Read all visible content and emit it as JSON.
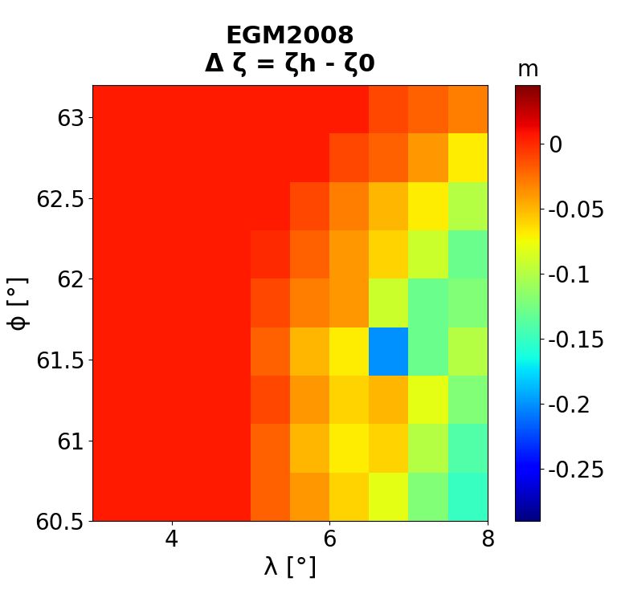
{
  "chart_data": {
    "type": "heatmap",
    "title": [
      "EGM2008",
      "Δ ζ = ζh - ζ0"
    ],
    "x_label": "λ [°]",
    "y_label": "ϕ [°]",
    "x": [
      3.25,
      3.75,
      4.25,
      4.75,
      5.25,
      5.75,
      6.25,
      6.75,
      7.25,
      7.75
    ],
    "y": [
      60.65,
      60.95,
      61.25,
      61.55,
      61.85,
      62.15,
      62.45,
      62.75,
      63.05
    ],
    "cells": [
      [
        0.005,
        0.005,
        0.005,
        0.005,
        -0.02,
        -0.04,
        -0.06,
        -0.08,
        -0.12,
        -0.15
      ],
      [
        0.005,
        0.005,
        0.005,
        0.005,
        -0.02,
        -0.05,
        -0.07,
        -0.06,
        -0.1,
        -0.14
      ],
      [
        0.005,
        0.005,
        0.005,
        0.005,
        -0.01,
        -0.04,
        -0.06,
        -0.05,
        -0.08,
        -0.12
      ],
      [
        0.005,
        0.005,
        0.005,
        0.005,
        -0.02,
        -0.05,
        -0.07,
        -0.2,
        -0.13,
        -0.1
      ],
      [
        0.005,
        0.005,
        0.005,
        0.005,
        -0.01,
        -0.03,
        -0.04,
        -0.09,
        -0.13,
        -0.12
      ],
      [
        0.005,
        0.005,
        0.005,
        0.005,
        0.0,
        -0.02,
        -0.04,
        -0.06,
        -0.09,
        -0.13
      ],
      [
        0.005,
        0.005,
        0.005,
        0.005,
        0.005,
        -0.01,
        -0.03,
        -0.05,
        -0.07,
        -0.1
      ],
      [
        0.005,
        0.005,
        0.005,
        0.005,
        0.005,
        0.005,
        -0.01,
        -0.02,
        -0.04,
        -0.07
      ],
      [
        0.005,
        0.005,
        0.005,
        0.005,
        0.005,
        0.005,
        0.005,
        -0.01,
        -0.02,
        -0.03
      ]
    ],
    "xlim": [
      3,
      8
    ],
    "xticks": [
      4,
      6,
      8
    ],
    "ylim": [
      60.5,
      63.2
    ],
    "yticks": [
      60.5,
      61,
      61.5,
      62,
      62.5,
      63
    ],
    "colorbar_label": "m",
    "colorbar_range": [
      -0.29,
      0.045
    ],
    "colorbar_ticks": [
      0,
      -0.05,
      -0.1,
      -0.15,
      -0.2,
      -0.25
    ]
  }
}
